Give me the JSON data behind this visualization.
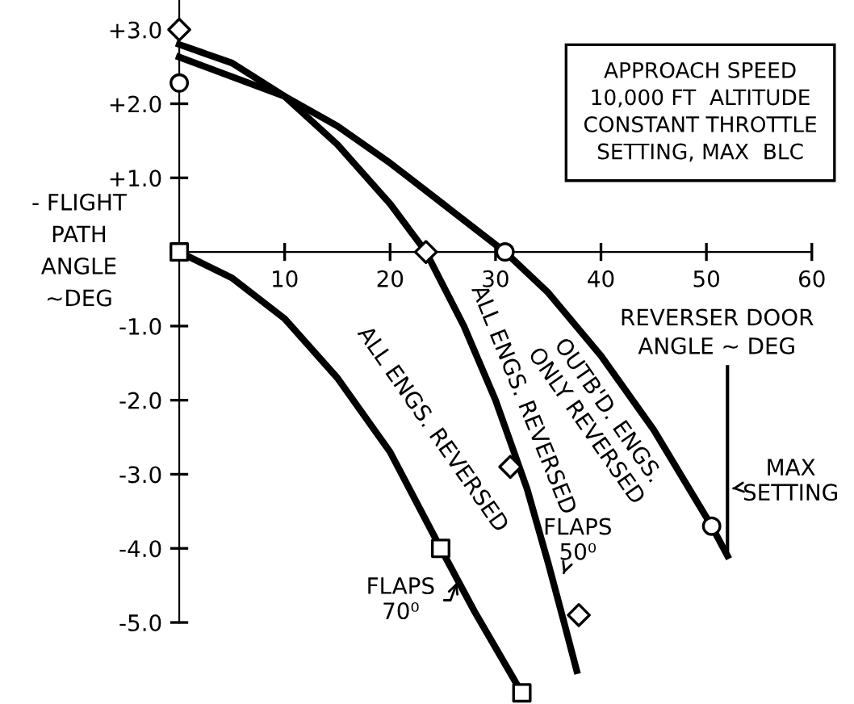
{
  "chart_data": {
    "type": "line",
    "xlabel": "REVERSER DOOR\nANGLE ~ DEG",
    "ylabel": "- FLIGHT\nPATH\nANGLE\n~DEG",
    "xlim": [
      -17,
      64
    ],
    "ylim": [
      -6.1,
      3.4
    ],
    "xticks": [
      {
        "value": 0,
        "label": null
      },
      10,
      20,
      30,
      40,
      50,
      60
    ],
    "yticks": [
      {
        "value": -5,
        "label": "-5.0"
      },
      {
        "value": -4,
        "label": "-4.0"
      },
      {
        "value": -3,
        "label": "-3.0"
      },
      {
        "value": -2,
        "label": "-2.0"
      },
      {
        "value": -1,
        "label": "-1.0"
      },
      {
        "value": 0,
        "label": null
      },
      {
        "value": 1,
        "label": "+1.0"
      },
      {
        "value": 2,
        "label": "+2.0"
      },
      {
        "value": 3,
        "label": "+3.0"
      }
    ],
    "grid": false,
    "series": [
      {
        "color": "#000000",
        "marker": "none",
        "x": [
          0,
          5,
          10,
          15,
          20,
          23.4,
          27,
          30,
          33,
          35,
          36.5,
          37.7
        ],
        "values": [
          2.8,
          2.55,
          2.1,
          1.45,
          0.65,
          0,
          -1.0,
          -2.0,
          -3.2,
          -4.2,
          -5.0,
          -5.65
        ]
      },
      {
        "color": "#000000",
        "marker": "none",
        "x": [
          0,
          10,
          15,
          20,
          25,
          30.9,
          35,
          40,
          45,
          50.5,
          52
        ],
        "values": [
          2.63,
          2.1,
          1.7,
          1.2,
          0.65,
          0,
          -0.55,
          -1.4,
          -2.4,
          -3.7,
          -4.1
        ]
      },
      {
        "color": "#000000",
        "marker": "none",
        "x": [
          0,
          5,
          10,
          15,
          20,
          24.8,
          28,
          32.5
        ],
        "values": [
          0,
          -0.35,
          -0.9,
          -1.7,
          -2.7,
          -4.0,
          -4.85,
          -5.95
        ]
      },
      {
        "type": "scatter",
        "color": "#000000",
        "marker": "diamond",
        "x": [
          0,
          23.4,
          31.4,
          37.9
        ],
        "values": [
          3.0,
          0,
          -2.9,
          -4.9
        ]
      },
      {
        "type": "scatter",
        "color": "#000000",
        "marker": "circle",
        "x": [
          0,
          30.9,
          50.5
        ],
        "values": [
          2.28,
          0,
          -3.7
        ]
      },
      {
        "type": "scatter",
        "color": "#000000",
        "marker": "square",
        "x": [
          0,
          24.8,
          32.5
        ],
        "values": [
          0,
          -4.0,
          -5.95
        ]
      }
    ],
    "ref_lines": [
      {
        "axis": "x",
        "value": 52,
        "label": "MAX\nSETTING",
        "color": "#000000",
        "line_style": "solid"
      }
    ],
    "annotations": [
      "APPROACH SPEED\n10,000 FT  ALTITUDE\nCONSTANT THROTTLE\nSETTING, MAX  BLC",
      "ALL ENGS. REVERSED",
      "OUTB'D. ENGS.\nONLY REVERSED",
      "ALL ENGS. REVERSED",
      {
        "text": "FLAPS\n50⁰",
        "x": 36.3,
        "y": -4.4
      },
      {
        "text": "FLAPS\n70⁰",
        "x": 26.5,
        "y": -4.4
      }
    ]
  }
}
